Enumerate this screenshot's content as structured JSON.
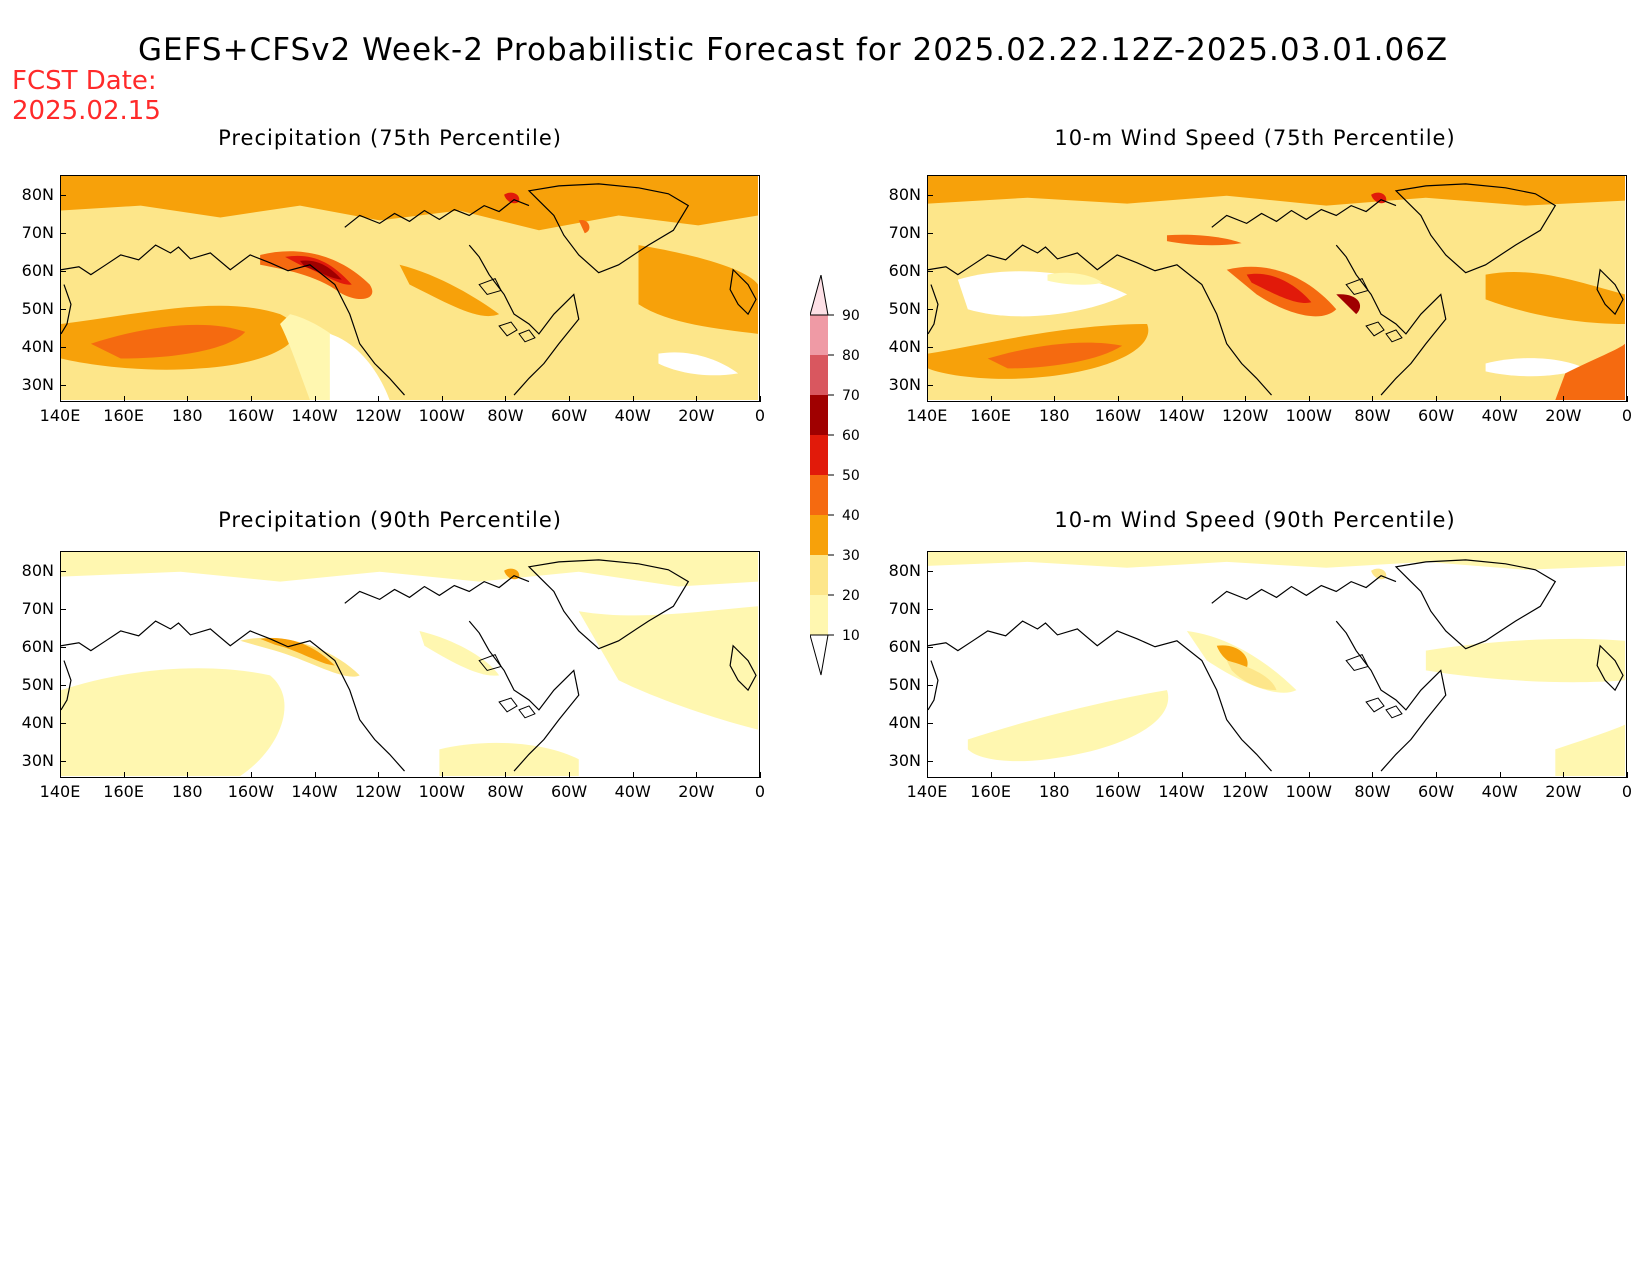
{
  "title": "GEFS+CFSv2 Week-2 Probabilistic Forecast for 2025.02.22.12Z-2025.03.01.06Z",
  "fcst_date": {
    "label": "FCST Date:",
    "value": "2025.02.15"
  },
  "panels": [
    {
      "title": "Precipitation (75th Percentile)"
    },
    {
      "title": "10-m Wind Speed (75th Percentile)"
    },
    {
      "title": "Precipitation (90th Percentile)"
    },
    {
      "title": "10-m Wind Speed (90th Percentile)"
    }
  ],
  "lat_labels": [
    "80N",
    "70N",
    "60N",
    "50N",
    "40N",
    "30N"
  ],
  "lon_labels": [
    "140E",
    "160E",
    "180",
    "160W",
    "140W",
    "120W",
    "100W",
    "80W",
    "60W",
    "40W",
    "20W",
    "0"
  ],
  "colorbar": {
    "levels": [
      "10",
      "20",
      "30",
      "40",
      "50",
      "60",
      "70",
      "80",
      "90"
    ],
    "colors": [
      "#fff7b0",
      "#fde68a",
      "#f7a10a",
      "#f56a10",
      "#e11a0a",
      "#a00000",
      "#d9575f",
      "#ef9aa5",
      "#fde0e6"
    ]
  }
}
